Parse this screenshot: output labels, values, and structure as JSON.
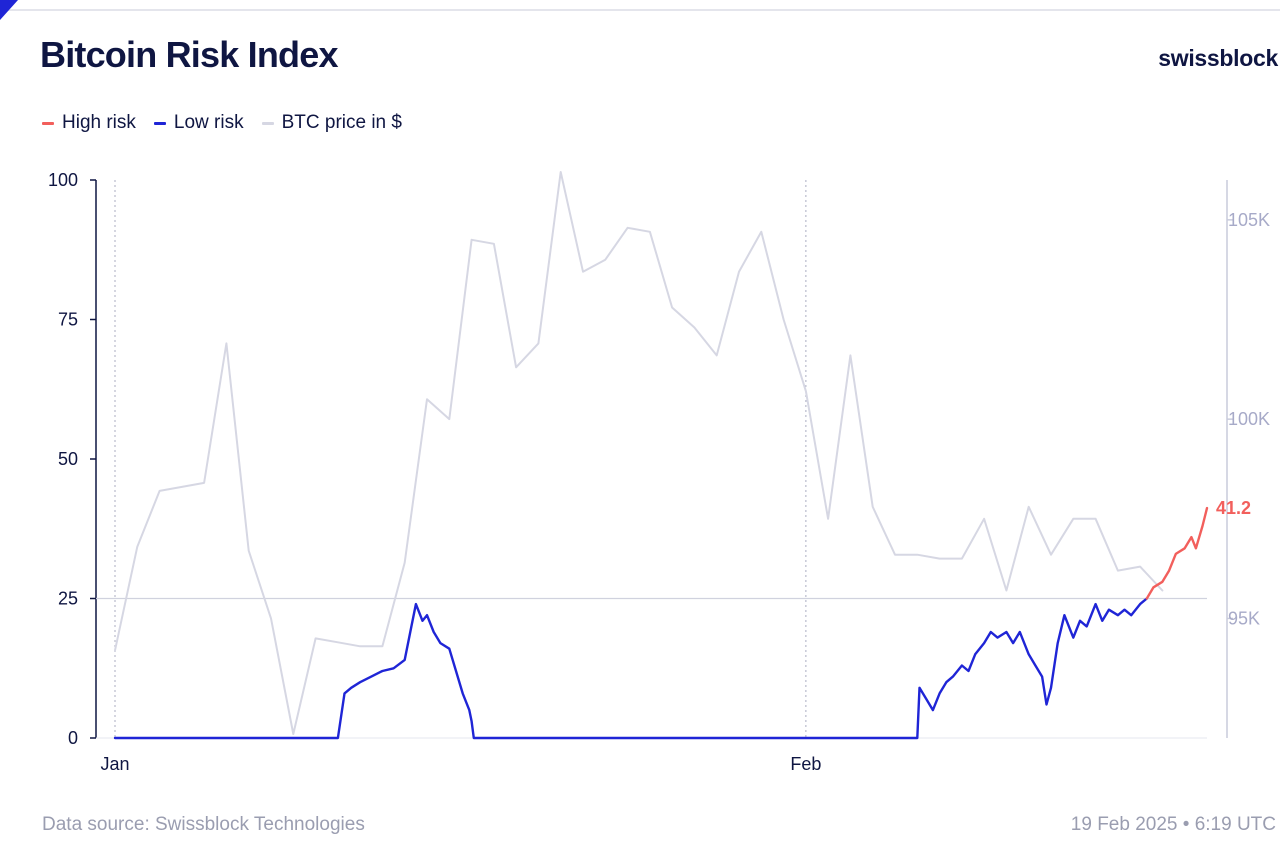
{
  "header": {
    "title": "Bitcoin Risk Index",
    "brand": "swissblock"
  },
  "legend": [
    {
      "label": "High risk",
      "color": "#f25f5c"
    },
    {
      "label": "Low risk",
      "color": "#1f25d6"
    },
    {
      "label": "BTC price in $",
      "color": "#d6d7e3"
    }
  ],
  "footer": {
    "source": "Data source: Swissblock Technologies",
    "timestamp": "19 Feb 2025 • 6:19 UTC"
  },
  "chart_data": {
    "type": "line",
    "title": "Bitcoin Risk Index",
    "xlabel": "",
    "ylabel": "",
    "x_range": [
      "2025-01-01",
      "2025-02-19"
    ],
    "x_ticks": [
      {
        "date": "2025-01-01",
        "label": "Jan"
      },
      {
        "date": "2025-02-01",
        "label": "Feb"
      }
    ],
    "y_left": {
      "range": [
        0,
        100
      ],
      "ticks": [
        0,
        25,
        50,
        75,
        100
      ],
      "labels": [
        "0",
        "25",
        "50",
        "75",
        "100"
      ]
    },
    "y_right": {
      "range": [
        92000,
        106000
      ],
      "ticks": [
        95000,
        100000,
        105000
      ],
      "labels": [
        "95K",
        "100K",
        "105K"
      ]
    },
    "threshold": 25,
    "grid": false,
    "legend_position": "top-left",
    "last_value_label": "41.2",
    "series": [
      {
        "name": "BTC price in $",
        "axis": "right",
        "points": [
          [
            "2025-01-01",
            94200
          ],
          [
            "2025-01-02",
            96800
          ],
          [
            "2025-01-03",
            98200
          ],
          [
            "2025-01-04",
            98300
          ],
          [
            "2025-01-05",
            98400
          ],
          [
            "2025-01-06",
            101900
          ],
          [
            "2025-01-07",
            96700
          ],
          [
            "2025-01-08",
            95000
          ],
          [
            "2025-01-09",
            92100
          ],
          [
            "2025-01-10",
            94500
          ],
          [
            "2025-01-11",
            94400
          ],
          [
            "2025-01-12",
            94300
          ],
          [
            "2025-01-13",
            94300
          ],
          [
            "2025-01-14",
            96400
          ],
          [
            "2025-01-15",
            100500
          ],
          [
            "2025-01-16",
            100000
          ],
          [
            "2025-01-17",
            104500
          ],
          [
            "2025-01-18",
            104400
          ],
          [
            "2025-01-19",
            101300
          ],
          [
            "2025-01-20",
            101900
          ],
          [
            "2025-01-21",
            106200
          ],
          [
            "2025-01-22",
            103700
          ],
          [
            "2025-01-23",
            104000
          ],
          [
            "2025-01-24",
            104800
          ],
          [
            "2025-01-25",
            104700
          ],
          [
            "2025-01-26",
            102800
          ],
          [
            "2025-01-27",
            102300
          ],
          [
            "2025-01-28",
            101600
          ],
          [
            "2025-01-29",
            103700
          ],
          [
            "2025-01-30",
            104700
          ],
          [
            "2025-01-31",
            102500
          ],
          [
            "2025-02-01",
            100700
          ],
          [
            "2025-02-02",
            97500
          ],
          [
            "2025-02-03",
            101600
          ],
          [
            "2025-02-04",
            97800
          ],
          [
            "2025-02-05",
            96600
          ],
          [
            "2025-02-06",
            96600
          ],
          [
            "2025-02-07",
            96500
          ],
          [
            "2025-02-08",
            96500
          ],
          [
            "2025-02-09",
            97500
          ],
          [
            "2025-02-10",
            95700
          ],
          [
            "2025-02-11",
            97800
          ],
          [
            "2025-02-12",
            96600
          ],
          [
            "2025-02-13",
            97500
          ],
          [
            "2025-02-14",
            97500
          ],
          [
            "2025-02-15",
            96200
          ],
          [
            "2025-02-16",
            96300
          ],
          [
            "2025-02-17",
            95700
          ]
        ]
      },
      {
        "name": "Low risk",
        "axis": "left",
        "points": [
          [
            "2025-01-01",
            0
          ],
          [
            "2025-01-11",
            0
          ],
          [
            "2025-01-11.3",
            8
          ],
          [
            "2025-01-11.6",
            9
          ],
          [
            "2025-01-12",
            10
          ],
          [
            "2025-01-12.5",
            11
          ],
          [
            "2025-01-13",
            12
          ],
          [
            "2025-01-13.5",
            12.5
          ],
          [
            "2025-01-14",
            14
          ],
          [
            "2025-01-14.3",
            20
          ],
          [
            "2025-01-14.5",
            24
          ],
          [
            "2025-01-14.8",
            21
          ],
          [
            "2025-01-15",
            22
          ],
          [
            "2025-01-15.3",
            19
          ],
          [
            "2025-01-15.6",
            17
          ],
          [
            "2025-01-16",
            16
          ],
          [
            "2025-01-16.3",
            12
          ],
          [
            "2025-01-16.6",
            8
          ],
          [
            "2025-01-16.9",
            5
          ],
          [
            "2025-01-17",
            3
          ],
          [
            "2025-01-17.1",
            0
          ],
          [
            "2025-02-06",
            0
          ],
          [
            "2025-02-06.1",
            9
          ],
          [
            "2025-02-06.4",
            7
          ],
          [
            "2025-02-06.7",
            5
          ],
          [
            "2025-02-07",
            8
          ],
          [
            "2025-02-07.3",
            10
          ],
          [
            "2025-02-07.6",
            11
          ],
          [
            "2025-02-08",
            13
          ],
          [
            "2025-02-08.3",
            12
          ],
          [
            "2025-02-08.6",
            15
          ],
          [
            "2025-02-09",
            17
          ],
          [
            "2025-02-09.3",
            19
          ],
          [
            "2025-02-09.6",
            18
          ],
          [
            "2025-02-10",
            19
          ],
          [
            "2025-02-10.3",
            17
          ],
          [
            "2025-02-10.6",
            19
          ],
          [
            "2025-02-11",
            15
          ],
          [
            "2025-02-11.3",
            13
          ],
          [
            "2025-02-11.6",
            11
          ],
          [
            "2025-02-11.8",
            6
          ],
          [
            "2025-02-12",
            9
          ],
          [
            "2025-02-12.3",
            17
          ],
          [
            "2025-02-12.6",
            22
          ],
          [
            "2025-02-13",
            18
          ],
          [
            "2025-02-13.3",
            21
          ],
          [
            "2025-02-13.6",
            20
          ],
          [
            "2025-02-14",
            24
          ],
          [
            "2025-02-14.3",
            21
          ],
          [
            "2025-02-14.6",
            23
          ],
          [
            "2025-02-15",
            22
          ],
          [
            "2025-02-15.3",
            23
          ],
          [
            "2025-02-15.6",
            22
          ],
          [
            "2025-02-16",
            24
          ],
          [
            "2025-02-16.3",
            25
          ]
        ]
      },
      {
        "name": "High risk",
        "axis": "left",
        "points": [
          [
            "2025-02-16.3",
            25
          ],
          [
            "2025-02-16.6",
            27
          ],
          [
            "2025-02-17",
            28
          ],
          [
            "2025-02-17.3",
            30
          ],
          [
            "2025-02-17.6",
            33
          ],
          [
            "2025-02-18",
            34
          ],
          [
            "2025-02-18.3",
            36
          ],
          [
            "2025-02-18.5",
            34
          ],
          [
            "2025-02-18.8",
            38
          ],
          [
            "2025-02-19",
            41.2
          ]
        ]
      }
    ]
  }
}
